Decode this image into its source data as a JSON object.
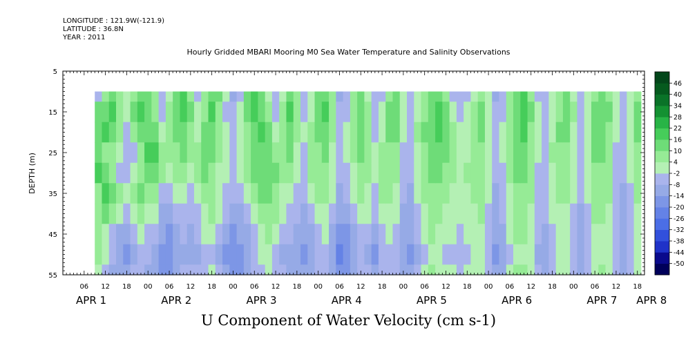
{
  "header": {
    "longitude": "LONGITUDE : 121.9W(-121.9)",
    "latitude": "LATITUDE : 36.8N",
    "year": "YEAR : 2011"
  },
  "chart_data": {
    "type": "heatmap",
    "title": "Hourly Gridded MBARI Mooring M0 Sea Water Temperature and Salinity Observations",
    "xlabel": "U Component of Water Velocity (cm s-1)",
    "ylabel": "DEPTH (m)",
    "x_hours_range": [
      0,
      164
    ],
    "x_data_range": [
      9,
      163
    ],
    "ylim": [
      55,
      5
    ],
    "depth_data_range": [
      10,
      55
    ],
    "y_ticks": [
      5,
      15,
      25,
      35,
      45,
      55
    ],
    "x_hour_ticks": [
      {
        "h": 6,
        "label": "06"
      },
      {
        "h": 12,
        "label": "12"
      },
      {
        "h": 18,
        "label": "18"
      },
      {
        "h": 24,
        "label": "00"
      },
      {
        "h": 30,
        "label": "06"
      },
      {
        "h": 36,
        "label": "12"
      },
      {
        "h": 42,
        "label": "18"
      },
      {
        "h": 48,
        "label": "00"
      },
      {
        "h": 54,
        "label": "06"
      },
      {
        "h": 60,
        "label": "12"
      },
      {
        "h": 66,
        "label": "18"
      },
      {
        "h": 72,
        "label": "00"
      },
      {
        "h": 78,
        "label": "06"
      },
      {
        "h": 84,
        "label": "12"
      },
      {
        "h": 90,
        "label": "18"
      },
      {
        "h": 96,
        "label": "00"
      },
      {
        "h": 102,
        "label": "06"
      },
      {
        "h": 108,
        "label": "12"
      },
      {
        "h": 114,
        "label": "18"
      },
      {
        "h": 120,
        "label": "00"
      },
      {
        "h": 126,
        "label": "06"
      },
      {
        "h": 132,
        "label": "12"
      },
      {
        "h": 138,
        "label": "18"
      },
      {
        "h": 144,
        "label": "00"
      },
      {
        "h": 150,
        "label": "06"
      },
      {
        "h": 156,
        "label": "12"
      },
      {
        "h": 162,
        "label": "18"
      },
      {
        "h": 168,
        "label": "00"
      }
    ],
    "day_labels": [
      {
        "h": 8,
        "label": "APR  1"
      },
      {
        "h": 32,
        "label": "APR  2"
      },
      {
        "h": 56,
        "label": "APR  3"
      },
      {
        "h": 80,
        "label": "APR  4"
      },
      {
        "h": 104,
        "label": "APR  5"
      },
      {
        "h": 128,
        "label": "APR  6"
      },
      {
        "h": 152,
        "label": "APR  7"
      },
      {
        "h": 166,
        "label": "APR  8"
      }
    ],
    "colorbar": {
      "levels": [
        -50,
        -44,
        -38,
        -32,
        -26,
        -20,
        -14,
        -8,
        -2,
        4,
        10,
        16,
        22,
        28,
        34,
        40,
        46
      ],
      "labels": [
        "-50",
        "-44",
        "-38",
        "-32",
        "-26",
        "-20",
        "-14",
        "-8",
        "-2",
        "4",
        "10",
        "16",
        "22",
        "28",
        "34",
        "40",
        "46"
      ],
      "colors": [
        "#00005a",
        "#0a0a8c",
        "#1f32c8",
        "#3250dc",
        "#4b6ee6",
        "#6482e6",
        "#7d96e6",
        "#96aae6",
        "#aab4ec",
        "#b4f0b4",
        "#96eb96",
        "#6edc78",
        "#46cd5a",
        "#28b446",
        "#149132",
        "#0a7328",
        "#055a1e",
        "#03461a"
      ]
    },
    "field": {
      "time_step_hours": 2,
      "depth_levels": [
        10,
        15,
        20,
        25,
        30,
        35,
        40,
        45,
        50,
        55
      ],
      "u_cm_s": [
        [
          -4,
          12,
          14,
          10,
          18,
          8,
          4,
          6,
          4,
          2
        ],
        [
          6,
          14,
          16,
          8,
          12,
          20,
          10,
          2,
          -2,
          -6
        ],
        [
          10,
          16,
          12,
          4,
          6,
          14,
          8,
          -4,
          -8,
          -10
        ],
        [
          4,
          8,
          6,
          -2,
          -4,
          4,
          2,
          -10,
          -14,
          -12
        ],
        [
          -2,
          2,
          -4,
          -8,
          -6,
          -2,
          -6,
          -12,
          -16,
          -14
        ],
        [
          8,
          10,
          4,
          -4,
          2,
          6,
          2,
          -6,
          -10,
          -8
        ],
        [
          14,
          16,
          10,
          6,
          8,
          10,
          4,
          -2,
          -6,
          -4
        ],
        [
          12,
          10,
          14,
          16,
          12,
          8,
          2,
          -4,
          -8,
          -10
        ],
        [
          6,
          4,
          10,
          18,
          14,
          6,
          -2,
          -8,
          -12,
          -14
        ],
        [
          -4,
          -6,
          2,
          8,
          4,
          -4,
          -10,
          -14,
          -18,
          -16
        ],
        [
          2,
          6,
          8,
          6,
          2,
          -6,
          -12,
          -16,
          -20,
          -18
        ],
        [
          10,
          14,
          12,
          8,
          4,
          -2,
          -8,
          -12,
          -14,
          -10
        ],
        [
          16,
          18,
          14,
          10,
          8,
          2,
          -4,
          -8,
          -10,
          -6
        ],
        [
          8,
          10,
          6,
          4,
          2,
          -4,
          -8,
          -10,
          -12,
          -8
        ],
        [
          -6,
          -2,
          2,
          4,
          4,
          0,
          -4,
          -8,
          -10,
          -6
        ],
        [
          4,
          8,
          10,
          12,
          10,
          6,
          2,
          -2,
          -6,
          -4
        ],
        [
          14,
          16,
          14,
          10,
          8,
          6,
          4,
          0,
          -4,
          -2
        ],
        [
          10,
          8,
          6,
          4,
          2,
          2,
          -2,
          -6,
          -10,
          -8
        ],
        [
          -2,
          -4,
          -2,
          0,
          -2,
          -4,
          -8,
          -12,
          -16,
          -14
        ],
        [
          -10,
          -8,
          -6,
          -4,
          -6,
          -8,
          -12,
          -16,
          -20,
          -18
        ],
        [
          -4,
          -2,
          0,
          2,
          0,
          -4,
          -10,
          -14,
          -18,
          -16
        ],
        [
          12,
          10,
          8,
          6,
          4,
          2,
          -4,
          -10,
          -14,
          -12
        ],
        [
          18,
          16,
          14,
          12,
          10,
          8,
          2,
          -4,
          -8,
          -6
        ],
        [
          10,
          14,
          16,
          14,
          12,
          10,
          6,
          2,
          -2,
          -4
        ],
        [
          -2,
          4,
          10,
          12,
          14,
          12,
          8,
          4,
          0,
          -2
        ],
        [
          -8,
          -4,
          2,
          8,
          10,
          8,
          4,
          0,
          -4,
          -6
        ],
        [
          2,
          6,
          8,
          6,
          4,
          2,
          -2,
          -6,
          -10,
          -8
        ],
        [
          12,
          16,
          14,
          10,
          6,
          2,
          -4,
          -8,
          -12,
          -10
        ],
        [
          6,
          8,
          6,
          2,
          -2,
          -4,
          -8,
          -12,
          -14,
          -12
        ],
        [
          -6,
          -4,
          -2,
          -4,
          -6,
          -8,
          -10,
          -14,
          -16,
          -14
        ],
        [
          -2,
          0,
          4,
          6,
          4,
          0,
          -6,
          -10,
          -14,
          -12
        ],
        [
          10,
          12,
          10,
          8,
          6,
          4,
          0,
          -4,
          -8,
          -6
        ],
        [
          14,
          16,
          14,
          12,
          8,
          6,
          2,
          -2,
          -6,
          -4
        ],
        [
          4,
          6,
          4,
          2,
          0,
          -2,
          -6,
          -10,
          -12,
          -10
        ],
        [
          -10,
          -8,
          -6,
          -6,
          -8,
          -10,
          -14,
          -18,
          -22,
          -20
        ],
        [
          -6,
          -4,
          -2,
          -2,
          -4,
          -8,
          -12,
          -16,
          -20,
          -18
        ],
        [
          6,
          8,
          6,
          4,
          2,
          -2,
          -6,
          -10,
          -14,
          -12
        ],
        [
          12,
          14,
          12,
          10,
          8,
          4,
          0,
          -4,
          -8,
          -6
        ],
        [
          2,
          4,
          6,
          6,
          4,
          2,
          -2,
          -6,
          -10,
          -8
        ],
        [
          -8,
          -6,
          -4,
          -2,
          -2,
          -4,
          -8,
          -12,
          -16,
          -14
        ],
        [
          -4,
          -2,
          2,
          4,
          6,
          4,
          0,
          -4,
          -8,
          -6
        ],
        [
          8,
          10,
          10,
          8,
          6,
          4,
          2,
          -2,
          -6,
          -4
        ],
        [
          10,
          14,
          12,
          8,
          6,
          2,
          -2,
          -6,
          -8,
          -6
        ],
        [
          -2,
          0,
          -2,
          -4,
          -6,
          -8,
          -10,
          -12,
          -14,
          -12
        ],
        [
          -8,
          -6,
          -6,
          -8,
          -8,
          -10,
          -12,
          -14,
          -16,
          -14
        ],
        [
          -2,
          2,
          4,
          2,
          0,
          -2,
          -6,
          -8,
          -10,
          -8
        ],
        [
          6,
          8,
          10,
          8,
          6,
          4,
          2,
          -2,
          -4,
          -2
        ],
        [
          10,
          12,
          14,
          12,
          10,
          8,
          6,
          4,
          2,
          4
        ],
        [
          14,
          16,
          16,
          14,
          10,
          8,
          4,
          2,
          0,
          2
        ],
        [
          6,
          10,
          12,
          10,
          8,
          6,
          2,
          -2,
          -4,
          -2
        ],
        [
          -4,
          0,
          4,
          6,
          4,
          2,
          0,
          -2,
          -4,
          -2
        ],
        [
          -8,
          -6,
          -2,
          2,
          2,
          0,
          -2,
          -4,
          -6,
          -4
        ],
        [
          -4,
          -2,
          0,
          2,
          4,
          2,
          0,
          -2,
          -4,
          -2
        ],
        [
          2,
          4,
          6,
          8,
          6,
          4,
          2,
          0,
          -2,
          0
        ],
        [
          8,
          10,
          10,
          8,
          6,
          6,
          4,
          2,
          0,
          2
        ],
        [
          -2,
          0,
          2,
          0,
          -2,
          -2,
          -4,
          -6,
          -8,
          -6
        ],
        [
          -10,
          -8,
          -6,
          -6,
          -8,
          -10,
          -12,
          -14,
          -16,
          -14
        ],
        [
          -6,
          -4,
          -2,
          -2,
          -4,
          -6,
          -8,
          -10,
          -12,
          -10
        ],
        [
          4,
          6,
          8,
          6,
          4,
          2,
          0,
          -2,
          -4,
          -2
        ],
        [
          10,
          12,
          14,
          12,
          10,
          8,
          6,
          4,
          2,
          4
        ],
        [
          16,
          18,
          16,
          12,
          10,
          8,
          6,
          4,
          2,
          4
        ],
        [
          8,
          10,
          8,
          6,
          4,
          4,
          2,
          0,
          -2,
          0
        ],
        [
          -4,
          -2,
          0,
          -2,
          -4,
          -4,
          -6,
          -8,
          -10,
          -8
        ],
        [
          -8,
          -6,
          -4,
          -4,
          -6,
          -6,
          -8,
          -10,
          -12,
          -10
        ],
        [
          -2,
          0,
          2,
          4,
          2,
          0,
          -2,
          -4,
          -6,
          -4
        ],
        [
          6,
          8,
          10,
          8,
          6,
          4,
          2,
          0,
          -2,
          0
        ],
        [
          10,
          12,
          10,
          8,
          6,
          4,
          2,
          0,
          -2,
          -2
        ],
        [
          2,
          4,
          2,
          0,
          -2,
          -2,
          -4,
          -6,
          -8,
          -6
        ],
        [
          -6,
          -4,
          -4,
          -6,
          -6,
          -8,
          -10,
          -12,
          -14,
          -12
        ],
        [
          -2,
          0,
          2,
          2,
          0,
          -2,
          -4,
          -6,
          -8,
          -6
        ],
        [
          6,
          10,
          12,
          10,
          8,
          6,
          4,
          2,
          0,
          2
        ],
        [
          12,
          14,
          12,
          10,
          8,
          6,
          4,
          2,
          2,
          4
        ],
        [
          8,
          10,
          8,
          6,
          4,
          4,
          2,
          0,
          0,
          2
        ],
        [
          -2,
          0,
          -2,
          -4,
          -4,
          -6,
          -6,
          -8,
          -8,
          -6
        ],
        [
          -6,
          -4,
          -6,
          -8,
          -8,
          -10,
          -10,
          -12,
          -12,
          -10
        ],
        [
          -2,
          0,
          2,
          0,
          -2,
          -4,
          -4,
          -6,
          -6,
          -4
        ],
        [
          8,
          12,
          10,
          8,
          6,
          4,
          2,
          0,
          0,
          2
        ],
        [
          14,
          18,
          16,
          12,
          10,
          8,
          6,
          4,
          4,
          6
        ]
      ]
    }
  }
}
